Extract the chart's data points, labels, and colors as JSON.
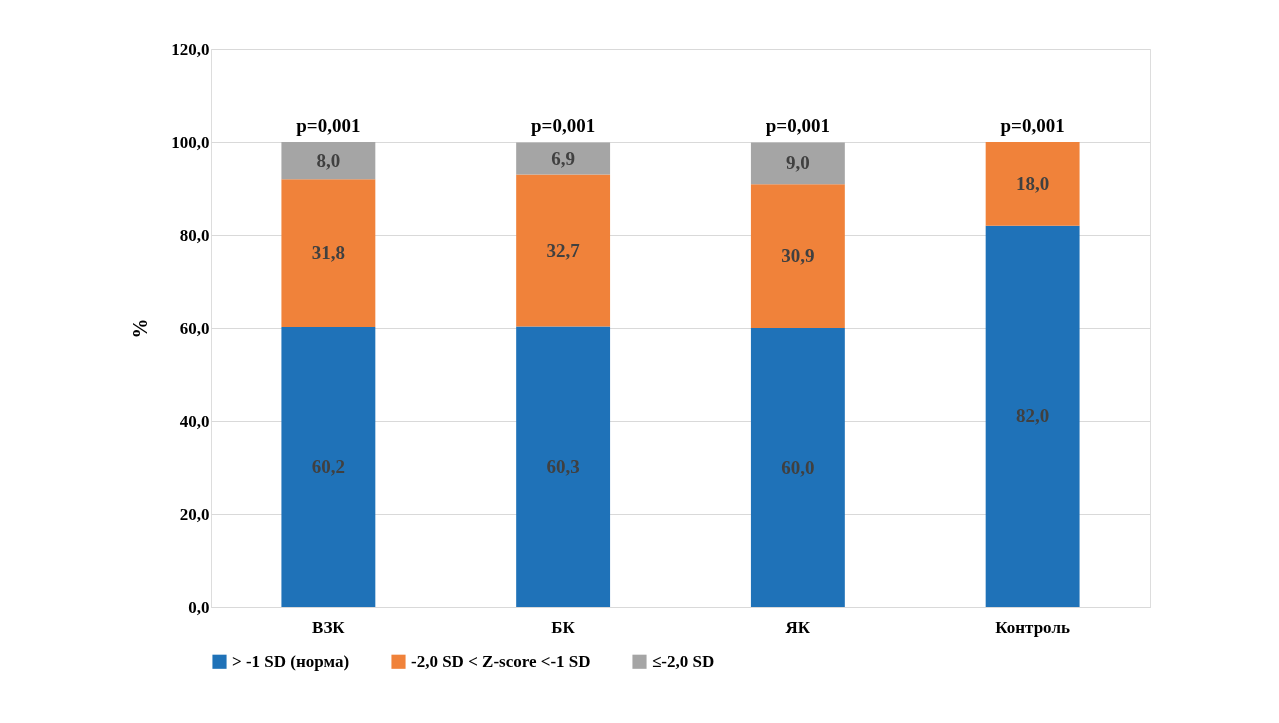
{
  "chart_data": {
    "type": "bar",
    "stacked": true,
    "ylabel": "%",
    "categories": [
      "ВЗК",
      "БК",
      "ЯК",
      "Контроль"
    ],
    "series": [
      {
        "name": "> -1 SD (норма)",
        "color": "#1f72b8",
        "values": [
          60.2,
          60.3,
          60.0,
          82.0
        ],
        "value_labels": [
          "60,2",
          "60,3",
          "60,0",
          "82,0"
        ]
      },
      {
        "name": "-2,0 SD < Z-score <-1 SD",
        "color": "#f0823a",
        "values": [
          31.8,
          32.7,
          30.9,
          18.0
        ],
        "value_labels": [
          "31,8",
          "32,7",
          "30,9",
          "18,0"
        ]
      },
      {
        "name": "≤-2,0 SD",
        "color": "#a5a5a5",
        "values": [
          8.0,
          6.9,
          9.0,
          null
        ],
        "value_labels": [
          "8,0",
          "6,9",
          "9,0",
          null
        ]
      }
    ],
    "ylim": [
      0,
      120
    ],
    "yticks": [
      {
        "value": 0,
        "label": "0,0"
      },
      {
        "value": 20,
        "label": "20,0"
      },
      {
        "value": 40,
        "label": "40,0"
      },
      {
        "value": 60,
        "label": "60,0"
      },
      {
        "value": 80,
        "label": "80,0"
      },
      {
        "value": 100,
        "label": "100,0"
      },
      {
        "value": 120,
        "label": "120,0"
      }
    ],
    "annotations": [
      "p=0,001",
      "p=0,001",
      "p=0,001",
      "p=0,001"
    ],
    "grid": "y",
    "legend": "bottom"
  }
}
